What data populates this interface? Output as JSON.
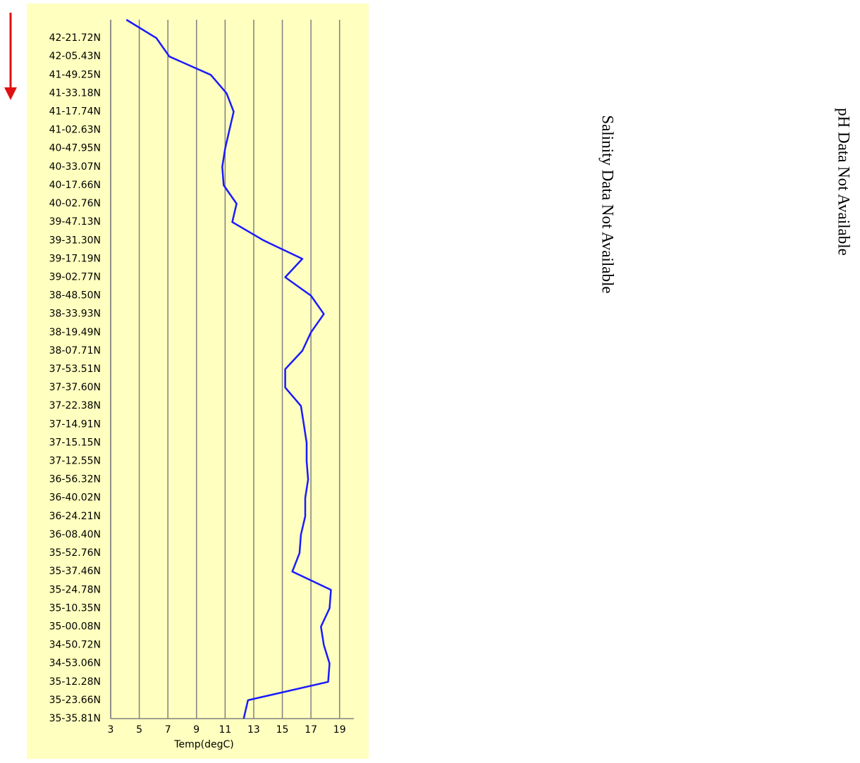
{
  "chart_data": {
    "type": "line",
    "x_label": "Temp(degC)",
    "categories": [
      null,
      "42-21.72N",
      "42-05.43N",
      "41-49.25N",
      "41-33.18N",
      "41-17.74N",
      "41-02.63N",
      "40-47.95N",
      "40-33.07N",
      "40-17.66N",
      "40-02.76N",
      "39-47.13N",
      "39-31.30N",
      "39-17.19N",
      "39-02.77N",
      "38-48.50N",
      "38-33.93N",
      "38-19.49N",
      "38-07.71N",
      "37-53.51N",
      "37-37.60N",
      "37-22.38N",
      "37-14.91N",
      "37-15.15N",
      "37-12.55N",
      "36-56.32N",
      "36-40.02N",
      "36-24.21N",
      "36-08.40N",
      "35-52.76N",
      "35-37.46N",
      "35-24.78N",
      "35-10.35N",
      "35-00.08N",
      "34-50.72N",
      "34-53.06N",
      "35-12.28N",
      "35-23.66N",
      "35-35.81N"
    ],
    "values": [
      4.1,
      6.2,
      7.1,
      10.0,
      11.1,
      11.6,
      11.3,
      11.0,
      10.8,
      10.9,
      11.8,
      11.5,
      13.7,
      16.4,
      15.2,
      17.0,
      17.9,
      17.0,
      16.4,
      15.2,
      15.2,
      16.3,
      16.5,
      16.7,
      16.7,
      16.8,
      16.6,
      16.6,
      16.3,
      16.2,
      15.7,
      18.4,
      18.3,
      17.7,
      17.9,
      18.3,
      18.2,
      12.6,
      12.3
    ],
    "color": "#1a1aff",
    "xlim": [
      3,
      20
    ],
    "xticks": [
      3,
      5,
      7,
      9,
      11,
      13,
      15,
      17,
      19
    ],
    "grid": true
  },
  "panels": {
    "salinity": "Salinity Data Not Available",
    "ph": "pH Data Not Available"
  }
}
